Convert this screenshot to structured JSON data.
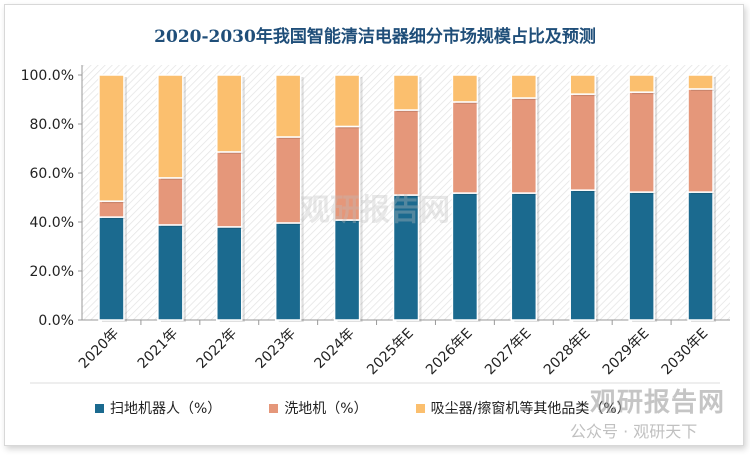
{
  "chart_data": {
    "type": "bar",
    "stacked": true,
    "title": "2020-2030年我国智能清洁电器细分市场规模占比及预测",
    "categories": [
      "2020年",
      "2021年",
      "2022年",
      "2023年",
      "2024年",
      "2025年E",
      "2026年E",
      "2027年E",
      "2028年E",
      "2029年E",
      "2030年E"
    ],
    "series": [
      {
        "name": "扫地机器人（%）",
        "color": "#1b6a8f",
        "values": [
          42.0,
          38.8,
          38.0,
          39.6,
          40.8,
          51.0,
          51.8,
          51.8,
          53.0,
          52.2,
          52.2
        ]
      },
      {
        "name": "洗地机（%）",
        "color": "#e5977a",
        "values": [
          6.5,
          19.2,
          30.6,
          35.1,
          38.2,
          34.7,
          37.2,
          38.8,
          39.2,
          40.8,
          42.1
        ]
      },
      {
        "name": "吸尘器/擦窗机等其他品类（%）",
        "color": "#fbbf6e",
        "values": [
          51.5,
          42.0,
          31.4,
          25.3,
          21.0,
          14.3,
          11.0,
          9.4,
          7.8,
          7.0,
          5.7
        ]
      }
    ],
    "yticks": [
      "0.0%",
      "20.0%",
      "40.0%",
      "60.0%",
      "80.0%",
      "100.0%"
    ],
    "ylim": [
      0,
      100
    ],
    "grid": false,
    "legend": "bottom"
  },
  "watermark": {
    "center": "观研报告网 chinabaogao.com",
    "corner": "观研报告网",
    "corner_sub": "公众号 · 观研天下"
  }
}
